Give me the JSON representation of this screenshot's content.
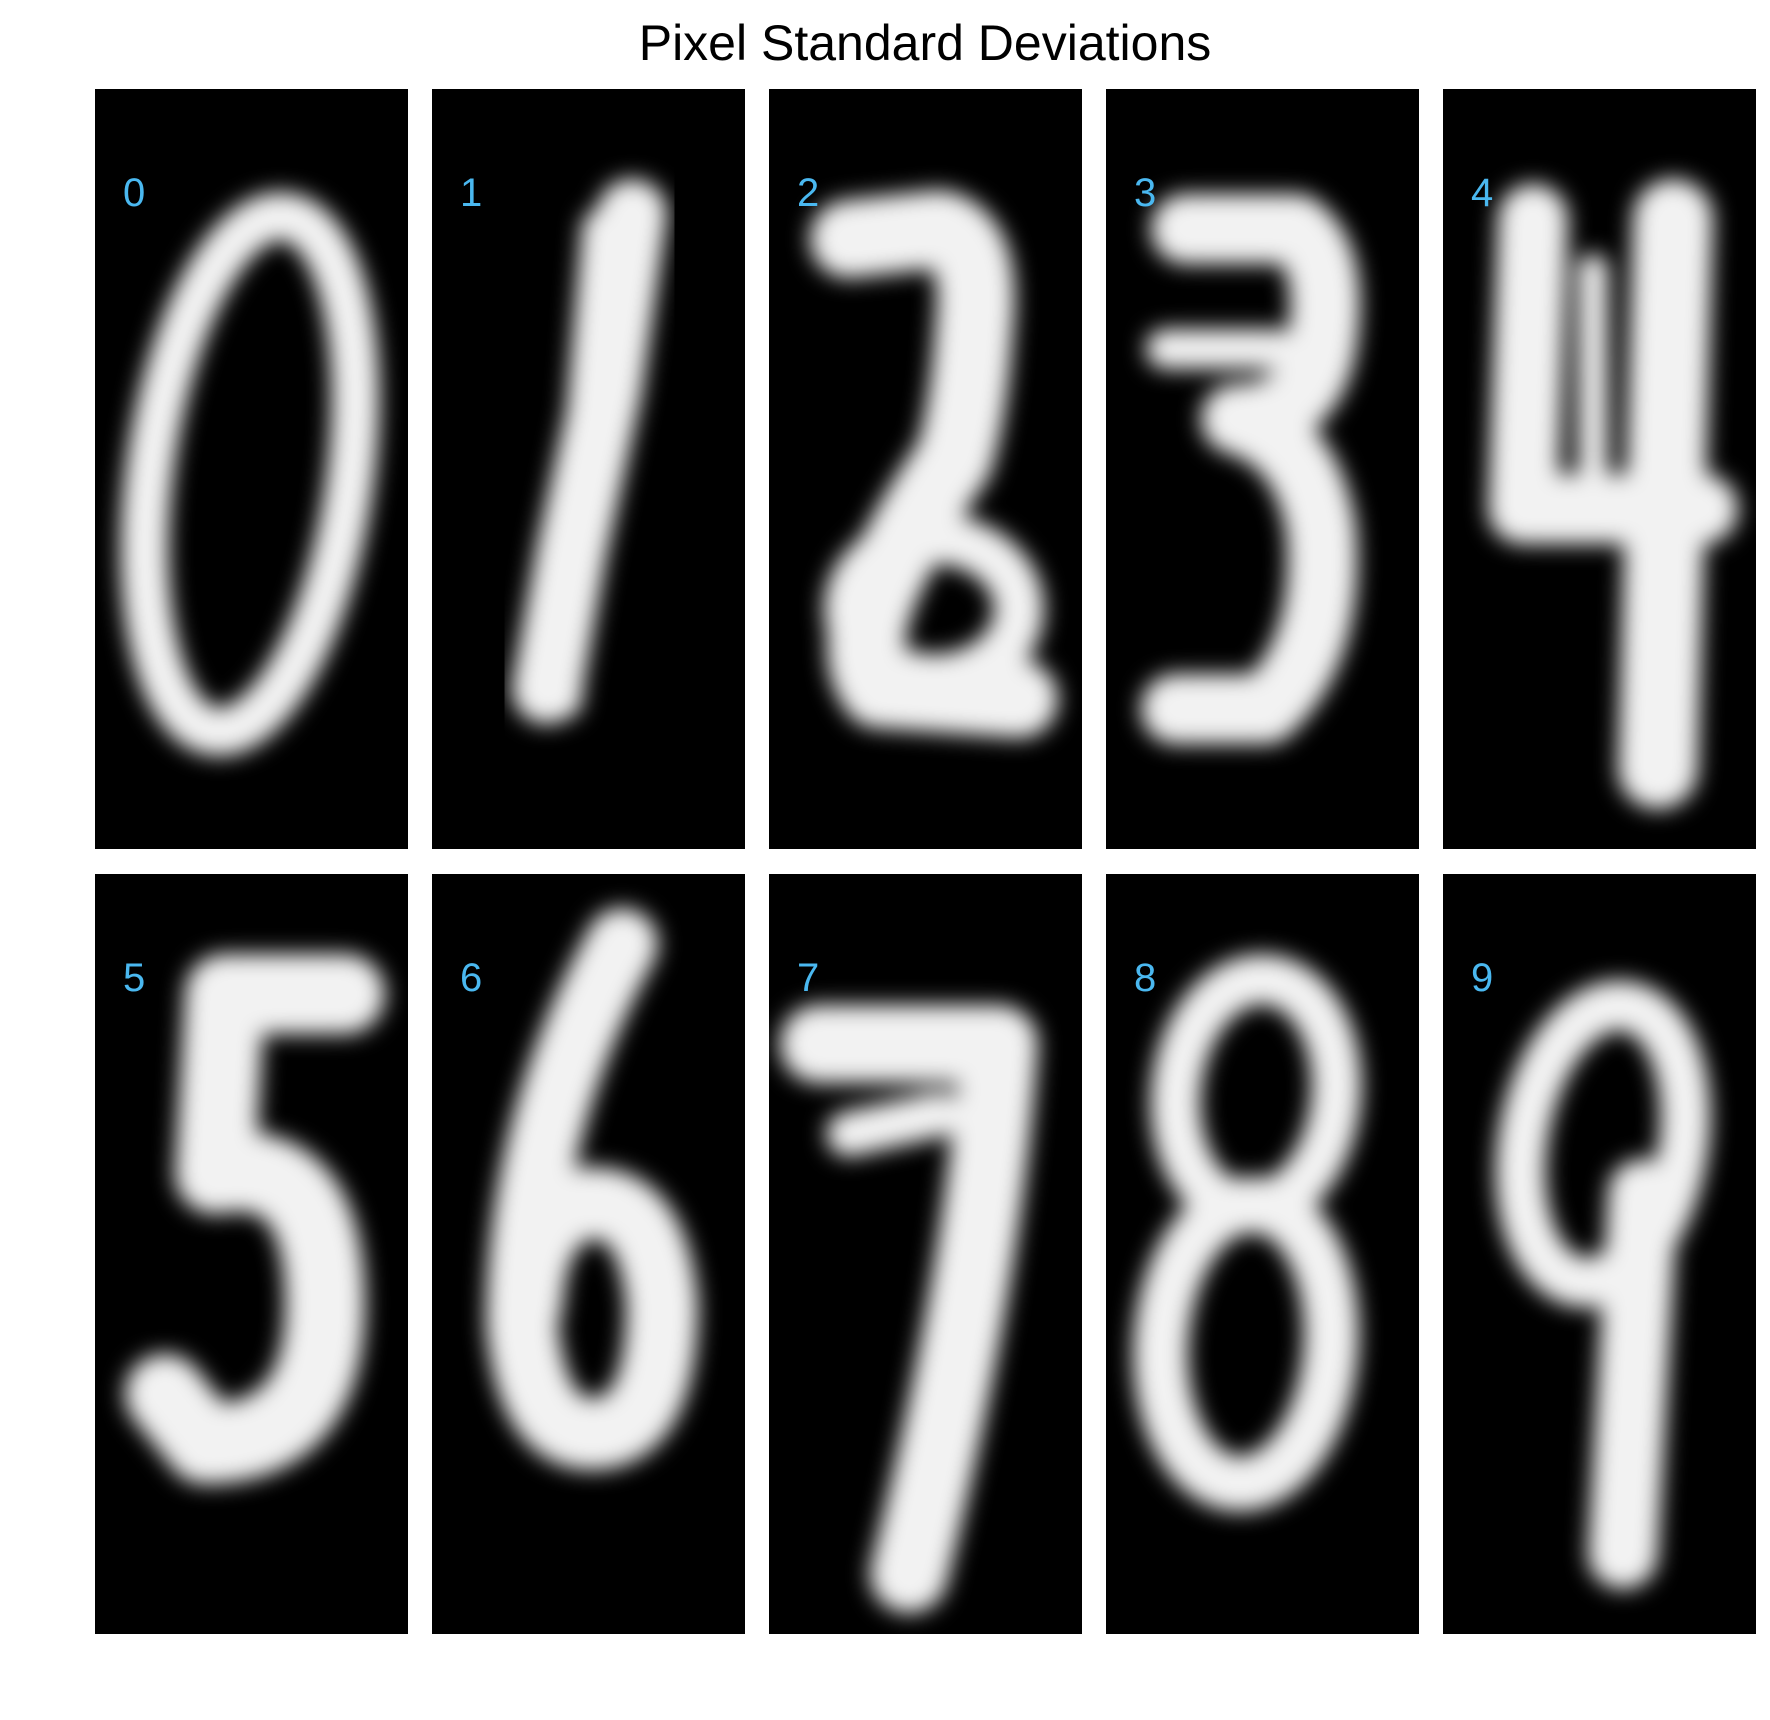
{
  "figure": {
    "title": "Pixel Standard Deviations",
    "label_color": "#4ab8f0",
    "background": "#000000"
  },
  "chart_data": {
    "type": "heatmap",
    "title": "Pixel Standard Deviations",
    "description": "Per-digit pixel standard deviation images (28x28 grayscale) for digits 0-9 arranged in a 2x5 grid",
    "colormap": "gray",
    "grid": false,
    "panels": [
      {
        "label": "0",
        "digit": 0
      },
      {
        "label": "1",
        "digit": 1
      },
      {
        "label": "2",
        "digit": 2
      },
      {
        "label": "3",
        "digit": 3
      },
      {
        "label": "4",
        "digit": 4
      },
      {
        "label": "5",
        "digit": 5
      },
      {
        "label": "6",
        "digit": 6
      },
      {
        "label": "7",
        "digit": 7
      },
      {
        "label": "8",
        "digit": 8
      },
      {
        "label": "9",
        "digit": 9
      }
    ]
  }
}
